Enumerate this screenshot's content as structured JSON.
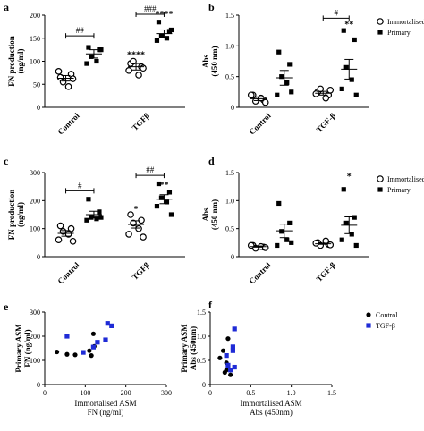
{
  "legend_top": [
    {
      "label": "Immortalised",
      "marker": "open-circle"
    },
    {
      "label": "Primary",
      "marker": "filled-square"
    }
  ],
  "legend_scatter": [
    {
      "label": "Control",
      "marker": "filled-circle",
      "color": "#000000"
    },
    {
      "label": "TGF-β",
      "marker": "filled-square",
      "color": "#1f2bd6"
    }
  ],
  "chart_data": [
    {
      "panel": "a",
      "type": "scatter",
      "ylabel": [
        "FN production",
        "(ng/ml)"
      ],
      "ylim": [
        0,
        200
      ],
      "yticks": [
        0,
        50,
        100,
        150,
        200
      ],
      "categories": [
        "Control",
        "TGFβ"
      ],
      "series": [
        {
          "name": "Immortalised",
          "marker": "open-circle",
          "groups": [
            [
              65,
              72,
              55,
              45,
              78,
              62
            ],
            [
              95,
              88,
              100,
              70,
              80,
              85
            ]
          ],
          "means": [
            63,
            88
          ],
          "sem": [
            6,
            7
          ]
        },
        {
          "name": "Primary",
          "marker": "filled-square",
          "groups": [
            [
              130,
              125,
              110,
              100,
              95,
              125
            ],
            [
              185,
              165,
              155,
              150,
              145,
              168
            ]
          ],
          "means": [
            116,
            160
          ],
          "sem": [
            9,
            8
          ]
        }
      ],
      "annotations": [
        {
          "text": "****",
          "category": 1,
          "series": 0,
          "y": 108
        },
        {
          "text": "****",
          "category": 1,
          "series": 1,
          "y": 196
        }
      ],
      "brackets": [
        {
          "category": 0,
          "y": 155,
          "text": "##"
        },
        {
          "category": 1,
          "y": 202,
          "text": "###"
        }
      ]
    },
    {
      "panel": "b",
      "type": "scatter",
      "ylabel": [
        "Abs",
        "(450 nm)"
      ],
      "ylim": [
        0,
        1.5
      ],
      "yticks": [
        0,
        0.5,
        1.0,
        1.5
      ],
      "categories": [
        "Control",
        "TGF-β"
      ],
      "series": [
        {
          "name": "Immortalised",
          "marker": "open-circle",
          "groups": [
            [
              0.2,
              0.12,
              0.1,
              0.15,
              0.2,
              0.08
            ],
            [
              0.25,
              0.2,
              0.3,
              0.15,
              0.22,
              0.28
            ]
          ],
          "means": [
            0.14,
            0.23
          ],
          "sem": [
            0.03,
            0.03
          ]
        },
        {
          "name": "Primary",
          "marker": "filled-square",
          "groups": [
            [
              0.9,
              0.7,
              0.5,
              0.4,
              0.2,
              0.25
            ],
            [
              1.25,
              1.1,
              0.65,
              0.45,
              0.3,
              0.2
            ]
          ],
          "means": [
            0.48,
            0.62
          ],
          "sem": [
            0.12,
            0.16
          ]
        }
      ],
      "annotations": [
        {
          "text": "**",
          "category": 1,
          "series": 1,
          "y": 1.3
        }
      ],
      "brackets": [
        {
          "category": 1,
          "y": 1.45,
          "text": "#"
        }
      ]
    },
    {
      "panel": "c",
      "type": "scatter",
      "ylabel": [
        "FN production",
        "(ng/ml)"
      ],
      "ylim": [
        0,
        300
      ],
      "yticks": [
        0,
        100,
        200,
        300
      ],
      "categories": [
        "Control",
        "TGFβ"
      ],
      "series": [
        {
          "name": "Immortalised",
          "marker": "open-circle",
          "groups": [
            [
              110,
              100,
              90,
              80,
              60,
              55
            ],
            [
              150,
              130,
              120,
              100,
              80,
              70
            ]
          ],
          "means": [
            83,
            115
          ],
          "sem": [
            10,
            13
          ]
        },
        {
          "name": "Primary",
          "marker": "filled-square",
          "groups": [
            [
              205,
              160,
              140,
              135,
              130,
              140
            ],
            [
              260,
              230,
              210,
              195,
              180,
              150
            ]
          ],
          "means": [
            150,
            205
          ],
          "sem": [
            12,
            16
          ]
        }
      ],
      "annotations": [
        {
          "text": "*",
          "category": 1,
          "series": 0,
          "y": 160
        },
        {
          "text": "**",
          "category": 1,
          "series": 1,
          "y": 245
        }
      ],
      "brackets": [
        {
          "category": 0,
          "y": 235,
          "text": "#"
        },
        {
          "category": 1,
          "y": 290,
          "text": "##"
        }
      ]
    },
    {
      "panel": "d",
      "type": "scatter",
      "ylabel": [
        "Abs",
        "(450 nm)"
      ],
      "ylim": [
        0,
        1.5
      ],
      "yticks": [
        0,
        0.5,
        1.0,
        1.5
      ],
      "categories": [
        "Control",
        "TGF-β"
      ],
      "series": [
        {
          "name": "Immortalised",
          "marker": "open-circle",
          "groups": [
            [
              0.2,
              0.17,
              0.15,
              0.18,
              0.2,
              0.16
            ],
            [
              0.25,
              0.22,
              0.2,
              0.28,
              0.24,
              0.21
            ]
          ],
          "means": [
            0.18,
            0.23
          ],
          "sem": [
            0.01,
            0.01
          ]
        },
        {
          "name": "Primary",
          "marker": "filled-square",
          "groups": [
            [
              0.95,
              0.6,
              0.45,
              0.3,
              0.2,
              0.25
            ],
            [
              1.2,
              0.7,
              0.6,
              0.4,
              0.3,
              0.2
            ]
          ],
          "means": [
            0.46,
            0.56
          ],
          "sem": [
            0.12,
            0.15
          ]
        }
      ],
      "annotations": [
        {
          "text": "*",
          "category": 1,
          "series": 1,
          "y": 1.38
        }
      ],
      "brackets": []
    },
    {
      "panel": "e",
      "type": "scatter",
      "xlabel": [
        "Immortalised ASM",
        "FN (ng/ml)"
      ],
      "ylabel": [
        "Primary ASM",
        "FN (ng/ml)"
      ],
      "xlim": [
        0,
        300
      ],
      "xticks": [
        0,
        100,
        200,
        300
      ],
      "ylim": [
        0,
        300
      ],
      "yticks": [
        0,
        100,
        200,
        300
      ],
      "series": [
        {
          "name": "Control",
          "color": "#000000",
          "marker": "filled-circle",
          "points": [
            [
              30,
              135
            ],
            [
              55,
              125
            ],
            [
              75,
              123
            ],
            [
              110,
              140
            ],
            [
              115,
              120
            ],
            [
              120,
              210
            ],
            [
              122,
              158
            ]
          ]
        },
        {
          "name": "TGF-β",
          "color": "#1f2bd6",
          "marker": "filled-square",
          "points": [
            [
              55,
              200
            ],
            [
              95,
              133
            ],
            [
              120,
              155
            ],
            [
              130,
              175
            ],
            [
              150,
              185
            ],
            [
              155,
              253
            ],
            [
              165,
              243
            ]
          ]
        }
      ]
    },
    {
      "panel": "f",
      "type": "scatter",
      "xlabel": [
        "Immortalised ASM",
        "Abs (450nm)"
      ],
      "ylabel": [
        "Primary ASM",
        "Abs (450nm)"
      ],
      "xlim": [
        0,
        1.5
      ],
      "xticks": [
        0,
        0.5,
        1.0,
        1.5
      ],
      "ylim": [
        0,
        1.5
      ],
      "yticks": [
        0,
        0.5,
        1.0,
        1.5
      ],
      "series": [
        {
          "name": "Control",
          "color": "#000000",
          "marker": "filled-circle",
          "points": [
            [
              0.12,
              0.55
            ],
            [
              0.16,
              0.7
            ],
            [
              0.18,
              0.25
            ],
            [
              0.2,
              0.3
            ],
            [
              0.2,
              0.45
            ],
            [
              0.22,
              0.95
            ],
            [
              0.25,
              0.2
            ]
          ]
        },
        {
          "name": "TGF-β",
          "color": "#1f2bd6",
          "marker": "filled-square",
          "points": [
            [
              0.2,
              0.6
            ],
            [
              0.22,
              0.4
            ],
            [
              0.25,
              0.3
            ],
            [
              0.28,
              0.78
            ],
            [
              0.3,
              0.36
            ],
            [
              0.3,
              1.15
            ],
            [
              0.28,
              0.7
            ]
          ]
        }
      ]
    }
  ]
}
